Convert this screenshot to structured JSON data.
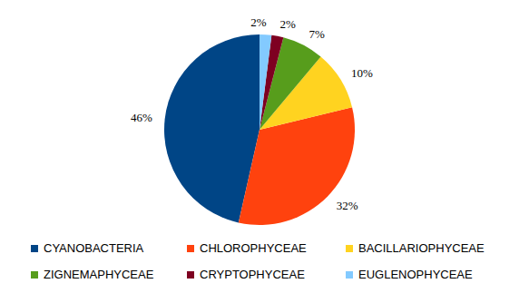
{
  "chart_data": {
    "type": "pie",
    "categories": [
      "CYANOBACTERIA",
      "CHLOROPHYCEAE",
      "BACILLARIOPHYCEAE",
      "ZIGNEMAPHYCEAE",
      "CRYPTOPHYCEAE",
      "EUGLENOPHYCEAE"
    ],
    "values": [
      46,
      32,
      10,
      7,
      2,
      2
    ],
    "value_labels": [
      "46%",
      "32%",
      "10%",
      "7%",
      "2%",
      "2%"
    ],
    "colors": [
      "#004586",
      "#ff420e",
      "#ffd320",
      "#579d1c",
      "#7e0021",
      "#83caff"
    ],
    "data_labels": true,
    "legend": "bottom"
  }
}
